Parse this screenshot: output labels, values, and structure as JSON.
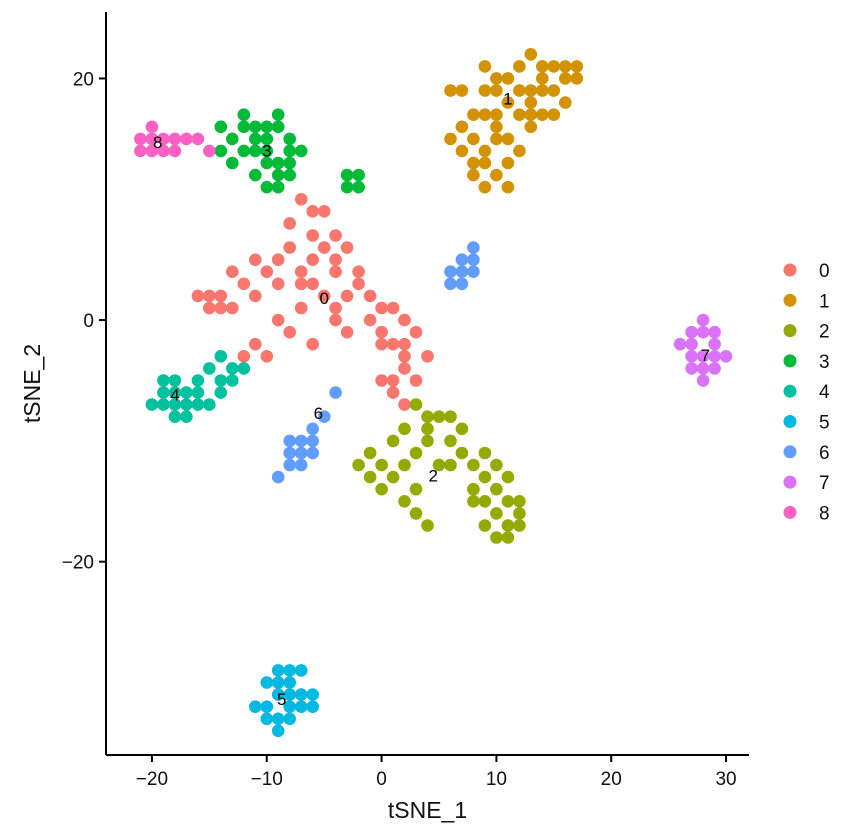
{
  "chart_data": {
    "type": "scatter",
    "title": "",
    "xlabel": "tSNE_1",
    "ylabel": "tSNE_2",
    "xlim": [
      -24,
      32
    ],
    "ylim": [
      -36,
      25.5
    ],
    "xticks": [
      -20,
      -10,
      0,
      10,
      20,
      30
    ],
    "yticks": [
      -20,
      0,
      20
    ],
    "xtick_labels": [
      "−20",
      "−10",
      "0",
      "10",
      "20",
      "30"
    ],
    "ytick_labels": [
      "−20",
      "0",
      "20"
    ],
    "grid": false,
    "legend_position": "right",
    "series": [
      {
        "name": "0",
        "color": "#F8766D",
        "label_at": [
          -5,
          1.7
        ],
        "points": [
          [
            -5,
            2
          ],
          [
            -4,
            4
          ],
          [
            -6,
            5
          ],
          [
            -7,
            3
          ],
          [
            -8,
            6
          ],
          [
            -10,
            4
          ],
          [
            -12,
            3
          ],
          [
            -14,
            2
          ],
          [
            -13,
            1
          ],
          [
            -11,
            5
          ],
          [
            -9,
            3
          ],
          [
            -6,
            7
          ],
          [
            -5,
            9
          ],
          [
            -3,
            6
          ],
          [
            -2,
            3
          ],
          [
            -1,
            0
          ],
          [
            0,
            -1
          ],
          [
            1,
            -2
          ],
          [
            2,
            -3
          ],
          [
            3,
            -1
          ],
          [
            2,
            0
          ],
          [
            1,
            1
          ],
          [
            -1,
            2
          ],
          [
            -3,
            -1
          ],
          [
            -4,
            0
          ],
          [
            -6,
            -2
          ],
          [
            -7,
            1
          ],
          [
            -9,
            0
          ],
          [
            -11,
            -2
          ],
          [
            -12,
            -3
          ],
          [
            -10,
            -3
          ],
          [
            -8,
            -1
          ],
          [
            -2,
            4
          ],
          [
            0,
            1
          ],
          [
            2,
            -4
          ],
          [
            3,
            -5
          ],
          [
            1,
            -5
          ],
          [
            -4,
            5
          ],
          [
            -7,
            4
          ],
          [
            -9,
            5
          ],
          [
            -11,
            2
          ],
          [
            -13,
            4
          ],
          [
            -15,
            2
          ],
          [
            -16,
            2
          ],
          [
            -6,
            3
          ],
          [
            -5,
            6
          ],
          [
            -4,
            1
          ],
          [
            -3,
            2
          ],
          [
            0,
            -2
          ],
          [
            2,
            -2
          ],
          [
            4,
            -3
          ],
          [
            1,
            -6
          ],
          [
            2,
            -7
          ],
          [
            0,
            -5
          ],
          [
            -8,
            8
          ],
          [
            -7,
            10
          ],
          [
            -6,
            9
          ],
          [
            -4,
            7
          ],
          [
            -14,
            1
          ],
          [
            -15,
            1
          ]
        ]
      },
      {
        "name": "1",
        "color": "#D39200",
        "label_at": [
          11,
          18.2
        ],
        "points": [
          [
            11,
            18
          ],
          [
            10,
            16
          ],
          [
            9,
            14
          ],
          [
            8,
            12
          ],
          [
            9,
            13
          ],
          [
            10,
            15
          ],
          [
            12,
            17
          ],
          [
            13,
            19
          ],
          [
            14,
            20
          ],
          [
            15,
            21
          ],
          [
            16,
            20
          ],
          [
            17,
            21
          ],
          [
            13,
            22
          ],
          [
            12,
            21
          ],
          [
            11,
            20
          ],
          [
            10,
            19
          ],
          [
            8,
            15
          ],
          [
            7,
            14
          ],
          [
            7,
            16
          ],
          [
            6,
            15
          ],
          [
            7,
            19
          ],
          [
            6,
            19
          ],
          [
            9,
            19
          ],
          [
            10,
            17
          ],
          [
            11,
            15
          ],
          [
            13,
            17
          ],
          [
            15,
            19
          ],
          [
            16,
            18
          ],
          [
            14,
            17
          ],
          [
            13,
            16
          ],
          [
            9,
            11
          ],
          [
            10,
            12
          ],
          [
            11,
            11
          ],
          [
            12,
            14
          ],
          [
            13,
            18
          ],
          [
            15,
            17
          ],
          [
            16,
            21
          ],
          [
            14,
            19
          ],
          [
            10,
            20
          ],
          [
            9,
            17
          ],
          [
            8,
            13
          ],
          [
            11,
            13
          ],
          [
            12,
            19
          ],
          [
            14,
            21
          ],
          [
            17,
            20
          ],
          [
            8,
            17
          ],
          [
            9,
            21
          ]
        ]
      },
      {
        "name": "2",
        "color": "#93AA00",
        "label_at": [
          4.5,
          -13
        ],
        "points": [
          [
            1,
            -10
          ],
          [
            2,
            -12
          ],
          [
            3,
            -11
          ],
          [
            4,
            -9
          ],
          [
            5,
            -8
          ],
          [
            6,
            -10
          ],
          [
            7,
            -11
          ],
          [
            8,
            -12
          ],
          [
            9,
            -13
          ],
          [
            10,
            -14
          ],
          [
            11,
            -15
          ],
          [
            12,
            -16
          ],
          [
            11,
            -17
          ],
          [
            10,
            -16
          ],
          [
            9,
            -15
          ],
          [
            8,
            -14
          ],
          [
            3,
            -14
          ],
          [
            2,
            -15
          ],
          [
            3,
            -16
          ],
          [
            4,
            -17
          ],
          [
            1,
            -13
          ],
          [
            0,
            -12
          ],
          [
            -1,
            -11
          ],
          [
            -2,
            -12
          ],
          [
            0,
            -14
          ],
          [
            2,
            -9
          ],
          [
            4,
            -8
          ],
          [
            6,
            -8
          ],
          [
            7,
            -9
          ],
          [
            9,
            -11
          ],
          [
            10,
            -12
          ],
          [
            11,
            -13
          ],
          [
            12,
            -15
          ],
          [
            10,
            -18
          ],
          [
            11,
            -18
          ],
          [
            5,
            -12
          ],
          [
            6,
            -12
          ],
          [
            3,
            -7
          ],
          [
            4,
            -10
          ],
          [
            -1,
            -13
          ],
          [
            9,
            -17
          ],
          [
            8,
            -15
          ],
          [
            12,
            -17
          ]
        ]
      },
      {
        "name": "3",
        "color": "#00BA38",
        "label_at": [
          -10,
          13.9
        ],
        "points": [
          [
            -13,
            15
          ],
          [
            -12,
            16
          ],
          [
            -11,
            15
          ],
          [
            -10,
            14
          ],
          [
            -9,
            13
          ],
          [
            -8,
            14
          ],
          [
            -9,
            16
          ],
          [
            -10,
            16
          ],
          [
            -12,
            14
          ],
          [
            -11,
            12
          ],
          [
            -10,
            11
          ],
          [
            -9,
            12
          ],
          [
            -8,
            12
          ],
          [
            -13,
            13
          ],
          [
            -12,
            17
          ],
          [
            -9,
            17
          ],
          [
            -8,
            15
          ],
          [
            -7,
            14
          ],
          [
            -10,
            13
          ],
          [
            -11,
            14
          ],
          [
            -14,
            16
          ],
          [
            -14,
            14
          ],
          [
            -9,
            11
          ],
          [
            -8,
            13
          ],
          [
            -10,
            15
          ],
          [
            -3,
            11
          ],
          [
            -2,
            11
          ],
          [
            -2,
            12
          ],
          [
            -3,
            12
          ],
          [
            -11,
            16
          ]
        ]
      },
      {
        "name": "4",
        "color": "#00C19F",
        "label_at": [
          -18,
          -6.3
        ],
        "points": [
          [
            -18,
            -6
          ],
          [
            -19,
            -7
          ],
          [
            -17,
            -7
          ],
          [
            -18,
            -8
          ],
          [
            -19,
            -6
          ],
          [
            -17,
            -6
          ],
          [
            -16,
            -5
          ],
          [
            -15,
            -4
          ],
          [
            -14,
            -5
          ],
          [
            -13,
            -4
          ],
          [
            -14,
            -6
          ],
          [
            -15,
            -7
          ],
          [
            -16,
            -6
          ],
          [
            -18,
            -7
          ],
          [
            -19,
            -5
          ],
          [
            -20,
            -7
          ],
          [
            -14,
            -3
          ],
          [
            -13,
            -5
          ],
          [
            -12,
            -4
          ],
          [
            -17,
            -8
          ],
          [
            -16,
            -7
          ],
          [
            -18,
            -5
          ]
        ]
      },
      {
        "name": "5",
        "color": "#00B9E3",
        "label_at": [
          -8.7,
          -31.5
        ],
        "points": [
          [
            -9,
            -31
          ],
          [
            -8,
            -30
          ],
          [
            -9,
            -29
          ],
          [
            -8,
            -32
          ],
          [
            -10,
            -32
          ],
          [
            -9,
            -33
          ],
          [
            -8,
            -33
          ],
          [
            -10,
            -30
          ],
          [
            -7,
            -29
          ],
          [
            -7,
            -31
          ],
          [
            -6,
            -32
          ],
          [
            -8,
            -29
          ],
          [
            -11,
            -32
          ],
          [
            -9,
            -34
          ],
          [
            -10,
            -33
          ],
          [
            -7,
            -32
          ],
          [
            -8,
            -31
          ],
          [
            -6,
            -31
          ],
          [
            -9,
            -30
          ]
        ]
      },
      {
        "name": "6",
        "color": "#619CFF",
        "label_at": [
          -5.5,
          -7.8
        ],
        "points": [
          [
            -5,
            -8
          ],
          [
            -6,
            -10
          ],
          [
            -7,
            -11
          ],
          [
            -8,
            -12
          ],
          [
            -7,
            -12
          ],
          [
            -6,
            -11
          ],
          [
            -8,
            -11
          ],
          [
            -7,
            -10
          ],
          [
            -9,
            -13
          ],
          [
            -8,
            -10
          ],
          [
            -6,
            -9
          ],
          [
            -4,
            -6
          ],
          [
            7,
            4
          ],
          [
            8,
            5
          ],
          [
            7,
            3
          ],
          [
            6,
            4
          ],
          [
            8,
            4
          ],
          [
            7,
            5
          ],
          [
            8,
            6
          ],
          [
            6,
            3
          ]
        ]
      },
      {
        "name": "7",
        "color": "#DB72FB",
        "label_at": [
          28.2,
          -3
        ],
        "points": [
          [
            28,
            -3
          ],
          [
            27,
            -2
          ],
          [
            28,
            -1
          ],
          [
            29,
            -3
          ],
          [
            28,
            -4
          ],
          [
            27,
            -4
          ],
          [
            29,
            -2
          ],
          [
            27,
            -1
          ],
          [
            28,
            0
          ],
          [
            29,
            -4
          ],
          [
            30,
            -3
          ],
          [
            26,
            -2
          ],
          [
            27,
            -3
          ],
          [
            28,
            -5
          ],
          [
            29,
            -1
          ]
        ]
      },
      {
        "name": "8",
        "color": "#FF61C3",
        "label_at": [
          -19.5,
          14.6
        ],
        "points": [
          [
            -20,
            15
          ],
          [
            -19,
            15
          ],
          [
            -18,
            15
          ],
          [
            -20,
            14
          ],
          [
            -19,
            14
          ],
          [
            -21,
            15
          ],
          [
            -21,
            14
          ],
          [
            -17,
            15
          ],
          [
            -16,
            15
          ],
          [
            -18,
            14
          ],
          [
            -20,
            16
          ],
          [
            -15,
            14
          ]
        ]
      }
    ]
  }
}
